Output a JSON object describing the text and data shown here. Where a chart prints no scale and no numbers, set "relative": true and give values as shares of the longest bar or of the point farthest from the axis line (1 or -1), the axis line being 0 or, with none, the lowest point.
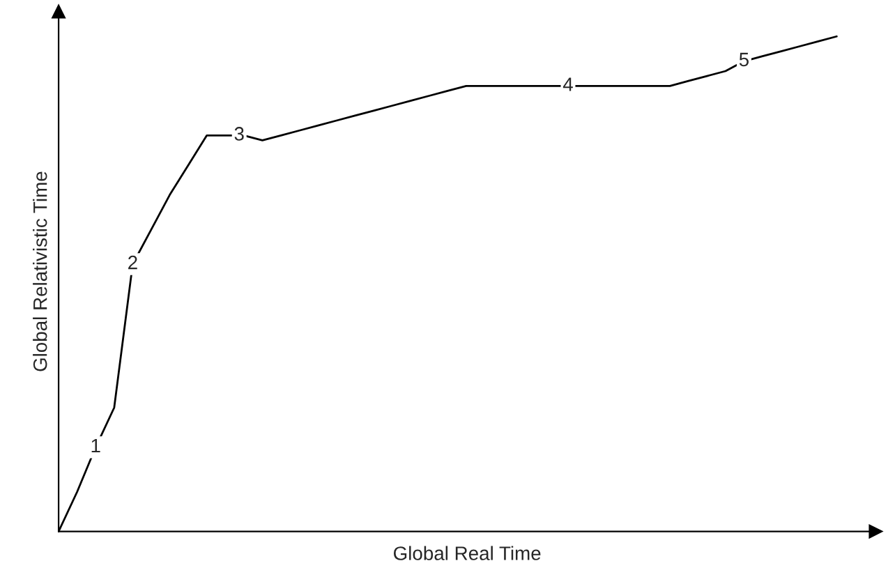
{
  "chart_data": {
    "type": "line",
    "relative": true,
    "xlabel": "Global Real Time",
    "ylabel": "Global Relativistic Time",
    "categories": [
      null,
      null,
      null,
      null,
      null,
      null,
      null,
      null,
      null,
      null,
      null,
      null,
      null,
      null,
      null,
      null,
      null,
      null,
      null,
      null,
      null,
      null,
      null,
      null,
      null,
      null,
      null,
      null,
      null,
      null,
      null,
      null,
      null,
      null,
      null,
      null,
      null,
      null,
      null,
      null,
      null,
      null,
      null
    ],
    "series": [
      {
        "color": "#000000",
        "values": [
          0,
          0.08,
          0.17,
          0.25,
          0.54,
          0.61,
          0.68,
          0.74,
          0.8,
          0.8,
          0.8,
          0.79,
          0.8,
          0.81,
          0.82,
          0.83,
          0.84,
          0.85,
          0.86,
          0.87,
          0.88,
          0.89,
          0.9,
          0.9,
          0.9,
          0.9,
          0.9,
          0.9,
          0.9,
          0.9,
          0.9,
          0.9,
          0.9,
          0.9,
          0.91,
          0.92,
          0.93,
          0.95,
          0.96,
          0.97,
          0.98,
          0.99,
          1.0
        ]
      }
    ],
    "annotations": [
      {
        "text": "1",
        "y": 0.17
      },
      {
        "text": "2",
        "y": 0.54
      },
      {
        "text": "3",
        "y": 0.8
      },
      {
        "text": "4",
        "y": 0.9
      },
      {
        "text": "5",
        "y": 0.95
      }
    ],
    "marker": "none",
    "line_style": "solid"
  }
}
